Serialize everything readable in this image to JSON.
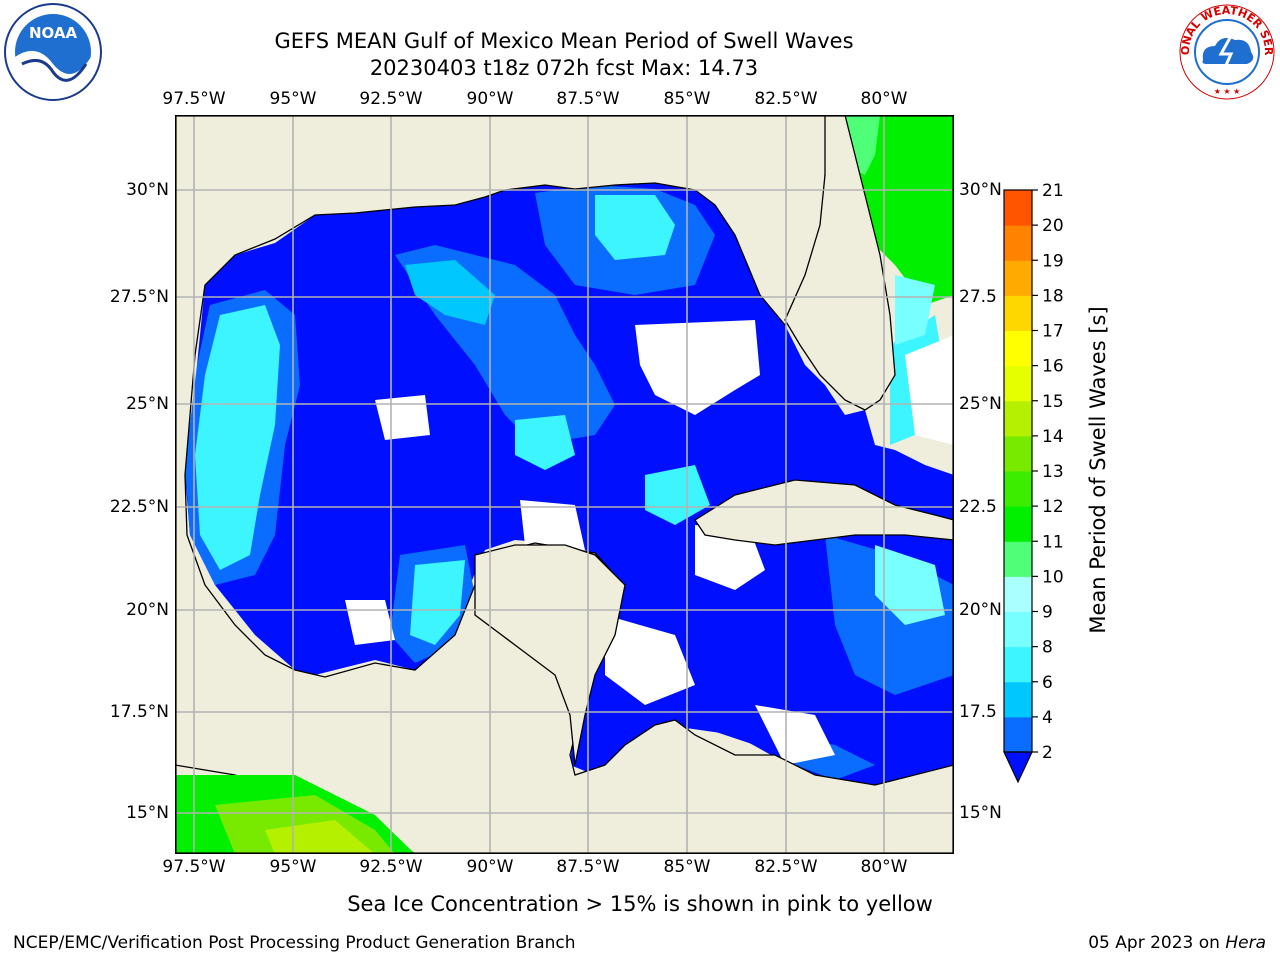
{
  "title_line1": "GEFS MEAN Gulf of Mexico Mean Period of Swell Waves",
  "title_line2": "20230403 t18z 072h fcst   Max: 14.73",
  "lon_ticks": [
    "97.5°W",
    "95°W",
    "92.5°W",
    "90°W",
    "87.5°W",
    "85°W",
    "82.5°W",
    "80°W"
  ],
  "lat_ticks_left": [
    "30°N",
    "27.5°N",
    "25°N",
    "22.5°N",
    "20°N",
    "17.5°N",
    "15°N"
  ],
  "lat_ticks_right": [
    "30°N",
    "27.5",
    "25°N",
    "22.5",
    "20°N",
    "17.5",
    "15°N"
  ],
  "colorbar": {
    "label": "Mean Period of Swell Waves [s]",
    "ticks": [
      "2",
      "4",
      "6",
      "8",
      "9",
      "10",
      "11",
      "12",
      "13",
      "14",
      "15",
      "16",
      "17",
      "18",
      "19",
      "20",
      "21"
    ],
    "colors": [
      "#0a6dff",
      "#00c8ff",
      "#3cf5ff",
      "#78ffff",
      "#aaffff",
      "#50ff78",
      "#00f000",
      "#3ced00",
      "#78ea00",
      "#b4f000",
      "#e6ff00",
      "#ffff00",
      "#ffd700",
      "#ffaa00",
      "#ff8200",
      "#ff5500",
      "#ff2a00",
      "#ff0000"
    ],
    "under_color": "#0010ff"
  },
  "colors": {
    "land": "#efeedc",
    "water_low": "#0010ff",
    "water_mid": "#0a6dff",
    "water_high": "#00c8ff",
    "grid": "#b3b3b3"
  },
  "subtitle": "Sea Ice Concentration > 15% is shown in pink to yellow",
  "footer_left": "NCEP/EMC/Verification Post Processing Product Generation Branch",
  "footer_date": "05 Apr 2023 on",
  "footer_host": "Hera",
  "logos": {
    "left": "NOAA",
    "right_ring": "NATIONAL WEATHER SERVICE"
  }
}
